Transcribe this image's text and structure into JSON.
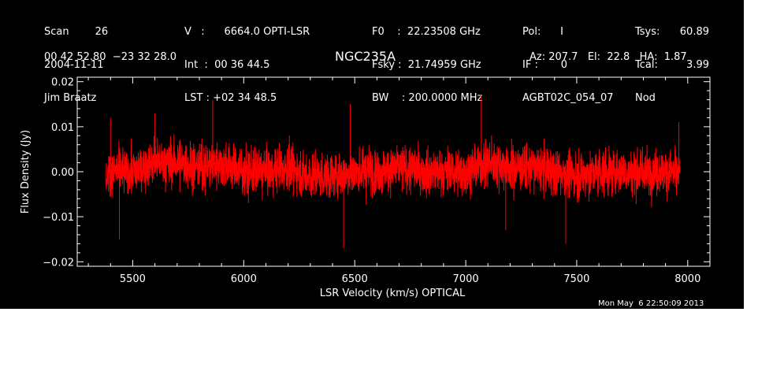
{
  "header": {
    "col1": [
      "Scan        26",
      "2004-11-11",
      "Jim Braatz"
    ],
    "col2": [
      "V   :      6664.0 OPTI-LSR",
      "Int  :  00 36 44.5",
      "LST : +02 34 48.5"
    ],
    "col3": [
      "F0    :  22.23508 GHz",
      "Fsky :  21.74959 GHz",
      "BW    : 200.0000 MHz"
    ],
    "col4": [
      "Pol:      I",
      "IF :       0",
      "AGBT02C_054_07"
    ],
    "col5": [
      "Tsys:",
      "Tcal:",
      "Nod"
    ],
    "col6": [
      "60.89",
      "3.99",
      ""
    ],
    "coords": "00 42 52.80  −23 32 28.0",
    "source": "NGC235A",
    "azelha": "Az: 207.7   El:  22.8   HA:  1.87",
    "timestamp": "Mon May  6 22:50:09 2013"
  },
  "chart_data": {
    "type": "line",
    "title": "NGC235A",
    "xlabel": "LSR Velocity (km/s) OPTICAL",
    "ylabel": "Flux Density (Jy)",
    "xlim": [
      5250,
      8100
    ],
    "ylim": [
      -0.021,
      0.021
    ],
    "xticks": [
      5500,
      6000,
      6500,
      7000,
      7500,
      8000
    ],
    "yticks": [
      -0.02,
      -0.01,
      0.0,
      0.01,
      0.02
    ],
    "ytick_labels": [
      "−0.02",
      "−0.01",
      "0.00",
      "0.01",
      "0.02"
    ],
    "series": [
      {
        "color": "#ff0000",
        "x_start": 5380,
        "x_end": 7965,
        "baseline": [
          [
            5380,
            0.0
          ],
          [
            5500,
            0.0
          ],
          [
            5600,
            0.002
          ],
          [
            5700,
            0.002
          ],
          [
            5800,
            0.001
          ],
          [
            5900,
            0.002
          ],
          [
            6000,
            0.0
          ],
          [
            6100,
            0.0
          ],
          [
            6200,
            0.001
          ],
          [
            6300,
            -0.001
          ],
          [
            6400,
            -0.001
          ],
          [
            6500,
            0.0
          ],
          [
            6600,
            0.0
          ],
          [
            6700,
            0.001
          ],
          [
            6800,
            0.0
          ],
          [
            6900,
            0.0
          ],
          [
            7000,
            0.0
          ],
          [
            7100,
            0.002
          ],
          [
            7200,
            0.001
          ],
          [
            7300,
            0.001
          ],
          [
            7400,
            0.0
          ],
          [
            7500,
            -0.001
          ],
          [
            7600,
            0.0
          ],
          [
            7700,
            0.0
          ],
          [
            7800,
            0.0
          ],
          [
            7900,
            0.0
          ],
          [
            7965,
            0.0
          ]
        ],
        "noise_rms": 0.0045,
        "peaks": [
          [
            5400,
            0.012
          ],
          [
            5440,
            -0.015
          ],
          [
            5600,
            0.013
          ],
          [
            5860,
            0.016
          ],
          [
            6450,
            -0.017
          ],
          [
            6480,
            0.015
          ],
          [
            7070,
            0.017
          ],
          [
            7180,
            -0.013
          ],
          [
            7450,
            -0.016
          ],
          [
            7960,
            0.011
          ]
        ]
      }
    ],
    "grid": false,
    "legend": "none"
  }
}
